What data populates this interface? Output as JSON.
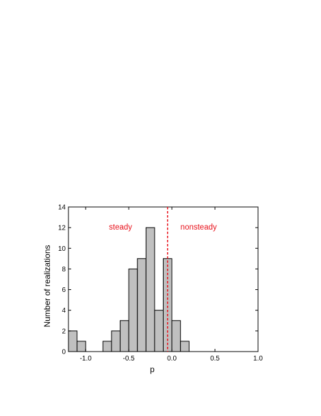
{
  "chart_data": {
    "type": "bar",
    "xlabel": "p",
    "ylabel": "Number of realizations",
    "xlim": [
      -1.2,
      1.0
    ],
    "ylim": [
      0,
      14
    ],
    "xticks": [
      -1.0,
      -0.5,
      0.0,
      0.5,
      1.0
    ],
    "xtick_labels": [
      "-1.0",
      "-0.5",
      "0.0",
      "0.5",
      "1.0"
    ],
    "yticks": [
      0,
      2,
      4,
      6,
      8,
      10,
      12,
      14
    ],
    "ytick_labels": [
      "0",
      "2",
      "4",
      "6",
      "8",
      "10",
      "12",
      "14"
    ],
    "bin_width": 0.1,
    "bins": [
      {
        "start": -1.2,
        "end": -1.1,
        "count": 2
      },
      {
        "start": -1.1,
        "end": -1.0,
        "count": 1
      },
      {
        "start": -1.0,
        "end": -0.9,
        "count": 0
      },
      {
        "start": -0.9,
        "end": -0.8,
        "count": 0
      },
      {
        "start": -0.8,
        "end": -0.7,
        "count": 1
      },
      {
        "start": -0.7,
        "end": -0.6,
        "count": 2
      },
      {
        "start": -0.6,
        "end": -0.5,
        "count": 3
      },
      {
        "start": -0.5,
        "end": -0.4,
        "count": 8
      },
      {
        "start": -0.4,
        "end": -0.3,
        "count": 9
      },
      {
        "start": -0.3,
        "end": -0.2,
        "count": 12
      },
      {
        "start": -0.2,
        "end": -0.1,
        "count": 4
      },
      {
        "start": -0.1,
        "end": 0.0,
        "count": 9
      },
      {
        "start": 0.0,
        "end": 0.1,
        "count": 3
      },
      {
        "start": 0.1,
        "end": 0.2,
        "count": 1
      },
      {
        "start": 0.2,
        "end": 0.3,
        "count": 0
      }
    ],
    "threshold": {
      "x": -0.05,
      "color": "#e8141e",
      "style": "dashed"
    },
    "annotations": [
      {
        "text": "steady",
        "x": -0.73,
        "y": 11.8,
        "color": "#e8141e"
      },
      {
        "text": "nonsteady",
        "x": 0.1,
        "y": 11.8,
        "color": "#e8141e"
      }
    ],
    "colors": {
      "bar_fill": "#c0c0c0",
      "bar_edge": "#000000",
      "annotation": "#e8141e"
    },
    "grid": false,
    "legend": false
  }
}
